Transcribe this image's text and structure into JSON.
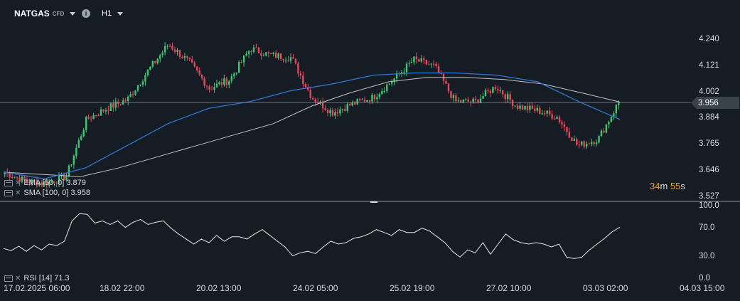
{
  "header": {
    "symbol": "NATGAS",
    "symbol_type": "CFD",
    "info_glyph": "i",
    "timeframe": "H1"
  },
  "indicators": {
    "ema_label": "EMA [50, 0]",
    "ema_value": "3.879",
    "sma_label": "SMA [100, 0]",
    "sma_value": "3.958",
    "rsi_label": "RSI [14]",
    "rsi_value": "71.3"
  },
  "current_price": "3.956",
  "countdown": {
    "minutes": "34",
    "m_unit": "m",
    "seconds": "55",
    "s_unit": "s"
  },
  "colors": {
    "background": "#151c24",
    "up_candle": "#3ec771",
    "down_candle": "#e8475a",
    "ema_line": "#2e78d2",
    "sma_line": "#c0c4c8",
    "rsi_line": "#e6e8ea",
    "price_line": "#8a939c"
  },
  "chart_data": [
    {
      "type": "candlestick",
      "title": "NATGAS CFD",
      "timeframe": "H1",
      "price_axis_ticks": [
        "4.240",
        "4.121",
        "4.002",
        "3.884",
        "3.765",
        "3.646",
        "3.527"
      ],
      "price_axis_values": [
        4.24,
        4.121,
        4.002,
        3.884,
        3.765,
        3.646,
        3.527
      ],
      "ylim": [
        3.527,
        4.24
      ],
      "time_axis_ticks": [
        "17.02.2025  06:00",
        "18.02  22:00",
        "20.02  13:00",
        "24.02  05:00",
        "25.02  19:00",
        "27.02  10:00",
        "03.03  02:00",
        "04.03  15:00"
      ],
      "current_price": 3.956,
      "close_path": [
        [
          "17.02.2025 06:00",
          3.64
        ],
        [
          "17.02",
          3.6
        ],
        [
          "18.02 00:00",
          3.59
        ],
        [
          "18.02 12:00",
          3.62
        ],
        [
          "18.02 16:00",
          3.88
        ],
        [
          "18.02 22:00",
          3.93
        ],
        [
          "19.02",
          3.97
        ],
        [
          "19.02 12:00",
          4.1
        ],
        [
          "20.02 00:00",
          4.22
        ],
        [
          "20.02 06:00",
          4.14
        ],
        [
          "20.02 13:00",
          4.02
        ],
        [
          "20.02 20:00",
          4.06
        ],
        [
          "21.02",
          4.2
        ],
        [
          "21.02 12:00",
          4.17
        ],
        [
          "21.02 18:00",
          4.16
        ],
        [
          "23.02",
          3.98
        ],
        [
          "24.02 05:00",
          3.91
        ],
        [
          "24.02 12:00",
          3.95
        ],
        [
          "24.02 20:00",
          3.98
        ],
        [
          "25.02 06:00",
          4.06
        ],
        [
          "25.02 19:00",
          4.15
        ],
        [
          "26.02",
          4.12
        ],
        [
          "26.02 12:00",
          3.96
        ],
        [
          "27.02 00:00",
          3.96
        ],
        [
          "27.02 10:00",
          4.03
        ],
        [
          "27.02 20:00",
          3.94
        ],
        [
          "28.02",
          3.92
        ],
        [
          "28.02 12:00",
          3.89
        ],
        [
          "02.03",
          3.76
        ],
        [
          "03.03 00:00",
          3.79
        ],
        [
          "03.03 02:00",
          3.956
        ]
      ],
      "series": [
        {
          "name": "EMA [50, 0]",
          "last": 3.879,
          "path": [
            3.64,
            3.61,
            3.66,
            3.76,
            3.86,
            3.93,
            3.96,
            4.01,
            4.04,
            4.08,
            4.09,
            4.09,
            4.08,
            4.05,
            3.96,
            3.879
          ]
        },
        {
          "name": "SMA [100, 0]",
          "last": 3.958,
          "path": [
            3.64,
            3.63,
            3.62,
            3.66,
            3.71,
            3.76,
            3.81,
            3.86,
            3.94,
            4.0,
            4.05,
            4.07,
            4.07,
            4.06,
            4.04,
            4.0,
            3.958
          ]
        }
      ]
    },
    {
      "type": "line",
      "title": "RSI [14]",
      "y_ticks": [
        "100.0",
        "70.0",
        "30.0",
        "0.0"
      ],
      "ylim": [
        0,
        100
      ],
      "last": 71.3,
      "values": [
        42,
        39,
        45,
        38,
        46,
        40,
        48,
        46,
        52,
        80,
        90,
        89,
        77,
        80,
        75,
        80,
        71,
        78,
        82,
        75,
        78,
        80,
        70,
        62,
        55,
        48,
        55,
        50,
        60,
        52,
        58,
        58,
        55,
        62,
        68,
        60,
        52,
        44,
        32,
        36,
        38,
        35,
        44,
        52,
        48,
        50,
        56,
        58,
        62,
        68,
        64,
        60,
        68,
        64,
        64,
        70,
        66,
        58,
        50,
        38,
        30,
        40,
        36,
        50,
        34,
        48,
        62,
        54,
        50,
        48,
        50,
        48,
        44,
        48,
        30,
        28,
        30,
        40,
        48,
        56,
        65,
        71.3
      ]
    }
  ]
}
